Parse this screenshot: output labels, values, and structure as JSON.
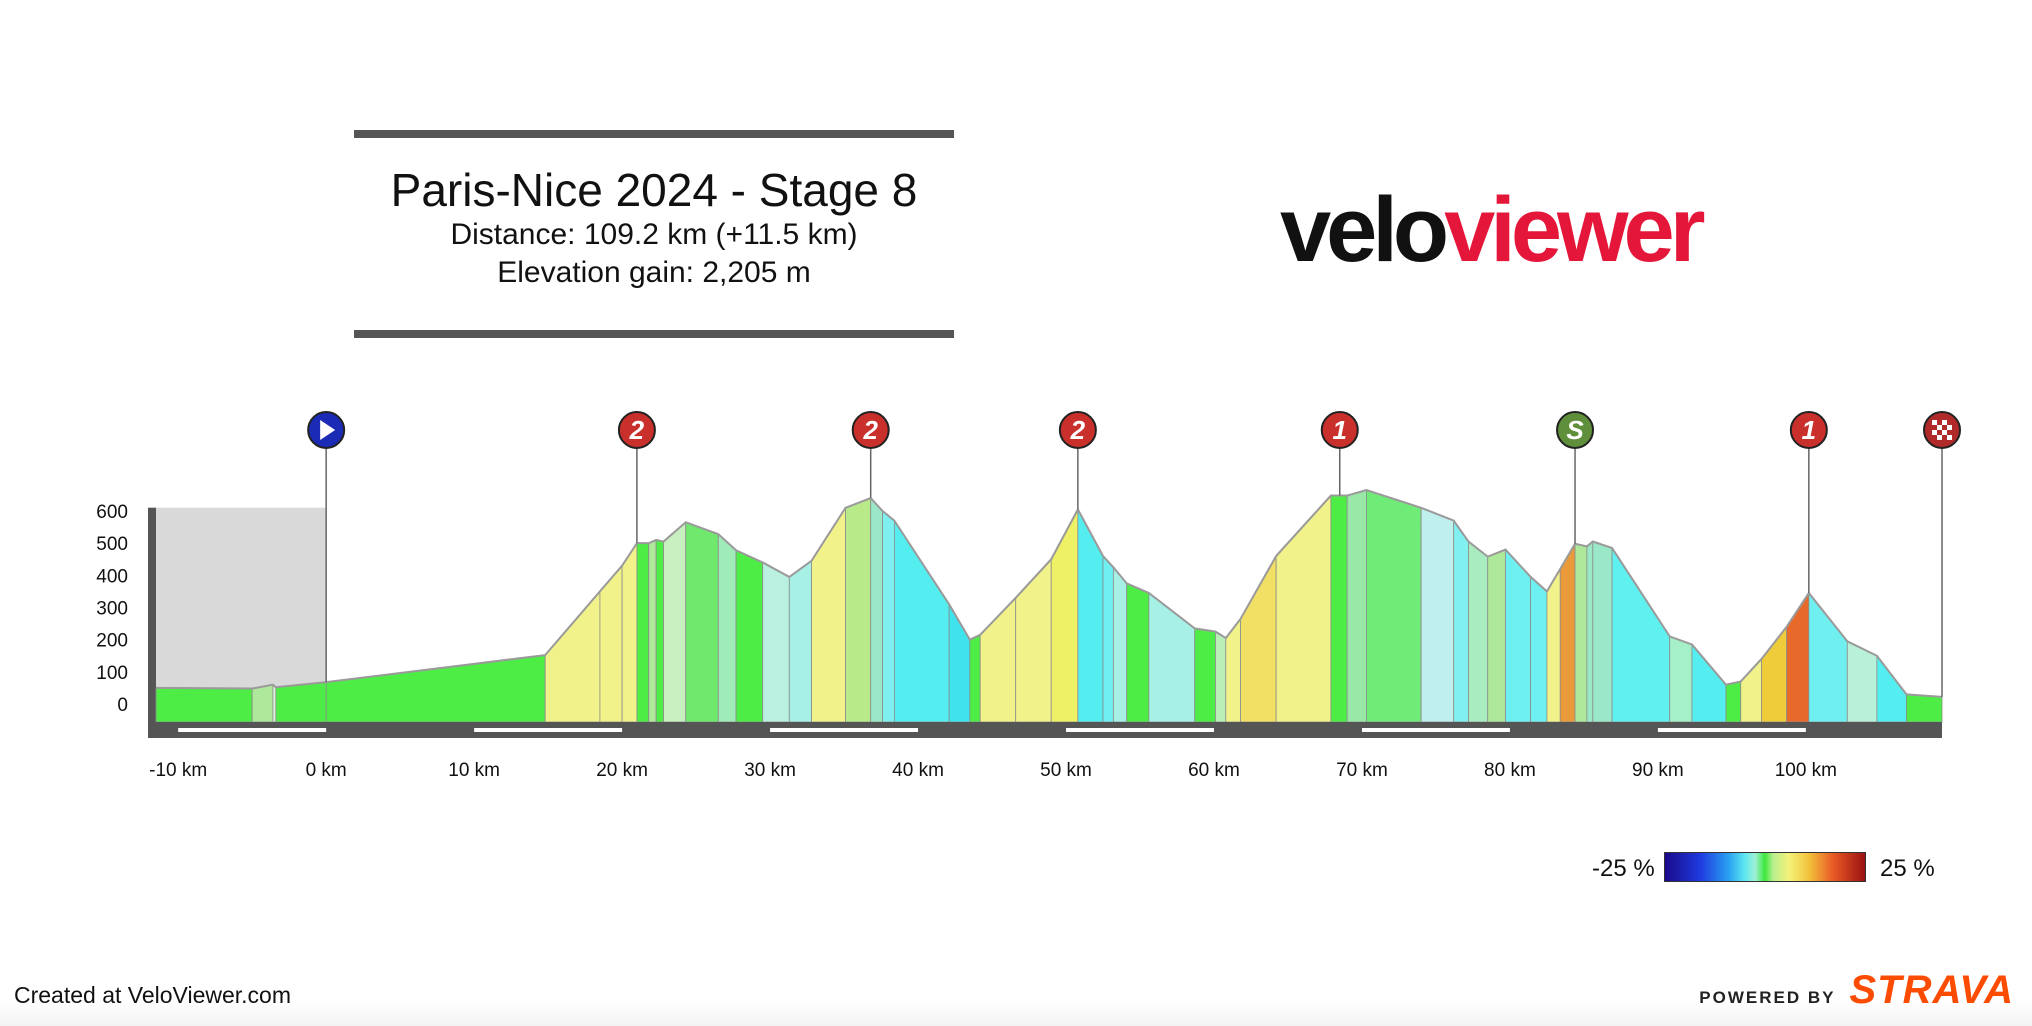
{
  "header": {
    "title": "Paris-Nice 2024 - Stage 8",
    "distance": "Distance: 109.2 km (+11.5 km)",
    "elevation_gain": "Elevation gain: 2,205 m"
  },
  "logo": {
    "part1": "velo",
    "part2": "viewer"
  },
  "footer": {
    "created": "Created at VeloViewer.com",
    "powered_by": "POWERED BY",
    "strava": "STRAVA"
  },
  "legend": {
    "min_label": "-25 %",
    "max_label": "25 %"
  },
  "colors": {
    "neutral_zone": "#d9d9d9",
    "base_bar": "#555555",
    "profile_line": "#9a9a9a",
    "cat2": "#c9302c",
    "cat1": "#c9302c",
    "sprint": "#5f8f3a",
    "start": "#1c2bb5"
  },
  "chart_data": {
    "type": "area",
    "title": "Paris-Nice 2024 - Stage 8",
    "xlabel": "",
    "ylabel": "",
    "xlim": [
      -11.5,
      109.2
    ],
    "ylim": [
      -50,
      660
    ],
    "x_ticks": [
      -10,
      0,
      10,
      20,
      30,
      40,
      50,
      60,
      70,
      80,
      90,
      100
    ],
    "x_tick_labels": [
      "-10 km",
      "0 km",
      "10 km",
      "20 km",
      "30 km",
      "40 km",
      "50 km",
      "60 km",
      "70 km",
      "80 km",
      "90 km",
      "100 km"
    ],
    "y_ticks": [
      0,
      100,
      200,
      300,
      400,
      500,
      600
    ],
    "y_tick_labels": [
      "0",
      "100",
      "200",
      "300",
      "400",
      "500",
      "600"
    ],
    "neutral_zone": [
      -11.5,
      0
    ],
    "gradient_scale": {
      "min": -25,
      "max": 25,
      "unit": "%"
    },
    "markers": [
      {
        "x": 0,
        "type": "start",
        "label": ""
      },
      {
        "x": 21,
        "type": "climb",
        "label": "2"
      },
      {
        "x": 36.8,
        "type": "climb",
        "label": "2"
      },
      {
        "x": 50.8,
        "type": "climb",
        "label": "2"
      },
      {
        "x": 68.5,
        "type": "climb",
        "label": "1"
      },
      {
        "x": 84.4,
        "type": "sprint",
        "label": "S"
      },
      {
        "x": 100.2,
        "type": "climb",
        "label": "1"
      },
      {
        "x": 109.2,
        "type": "finish",
        "label": ""
      }
    ],
    "profile": [
      {
        "x": -11.5,
        "y": 50,
        "color": "#4ded45"
      },
      {
        "x": -5,
        "y": 48,
        "color": "#aee89a"
      },
      {
        "x": -3.6,
        "y": 60,
        "color": "#d8f0d8"
      },
      {
        "x": -3.4,
        "y": 52,
        "color": "#4ded45"
      },
      {
        "x": 0,
        "y": 68,
        "color": "#4ded45"
      },
      {
        "x": 14.8,
        "y": 152,
        "color": "#f2f28a"
      },
      {
        "x": 18.5,
        "y": 350,
        "color": "#f2f28a"
      },
      {
        "x": 20,
        "y": 430,
        "color": "#f2f28a"
      },
      {
        "x": 21,
        "y": 500,
        "color": "#4ded45"
      },
      {
        "x": 21.8,
        "y": 500,
        "color": "#aee89a"
      },
      {
        "x": 22.3,
        "y": 510,
        "color": "#4ded45"
      },
      {
        "x": 22.8,
        "y": 505,
        "color": "#c8f0c0"
      },
      {
        "x": 24.3,
        "y": 565,
        "color": "#6fe86d"
      },
      {
        "x": 26.5,
        "y": 528,
        "color": "#9fecb8"
      },
      {
        "x": 27.7,
        "y": 478,
        "color": "#4ded45"
      },
      {
        "x": 29.5,
        "y": 440,
        "color": "#b9f0e0"
      },
      {
        "x": 31.3,
        "y": 395,
        "color": "#a6f0e6"
      },
      {
        "x": 32.8,
        "y": 445,
        "color": "#f2f28a"
      },
      {
        "x": 35.1,
        "y": 610,
        "color": "#b8ea8a"
      },
      {
        "x": 36.8,
        "y": 640,
        "color": "#9ae8c8"
      },
      {
        "x": 37.6,
        "y": 600,
        "color": "#7ef0f0"
      },
      {
        "x": 38.4,
        "y": 570,
        "color": "#55eef0"
      },
      {
        "x": 42.1,
        "y": 310,
        "color": "#3fe3ee"
      },
      {
        "x": 43.5,
        "y": 200,
        "color": "#4ded45"
      },
      {
        "x": 44.2,
        "y": 215,
        "color": "#f2f28a"
      },
      {
        "x": 46.6,
        "y": 330,
        "color": "#f2f28a"
      },
      {
        "x": 49,
        "y": 450,
        "color": "#eef065"
      },
      {
        "x": 50.8,
        "y": 605,
        "color": "#55eef0"
      },
      {
        "x": 52.5,
        "y": 460,
        "color": "#6feff0"
      },
      {
        "x": 53.2,
        "y": 425,
        "color": "#a6f0e6"
      },
      {
        "x": 54.1,
        "y": 375,
        "color": "#4ded45"
      },
      {
        "x": 55.6,
        "y": 345,
        "color": "#a6f0e6"
      },
      {
        "x": 58.7,
        "y": 235,
        "color": "#4ded45"
      },
      {
        "x": 60.1,
        "y": 225,
        "color": "#b8f0b8"
      },
      {
        "x": 60.8,
        "y": 205,
        "color": "#f2f28a"
      },
      {
        "x": 61.8,
        "y": 265,
        "color": "#f2e065"
      },
      {
        "x": 64.2,
        "y": 460,
        "color": "#f2f28a"
      },
      {
        "x": 67.9,
        "y": 648,
        "color": "#4ded45"
      },
      {
        "x": 69,
        "y": 648,
        "color": "#9ae8a8"
      },
      {
        "x": 70.3,
        "y": 665,
        "color": "#6feb78"
      },
      {
        "x": 74,
        "y": 610,
        "color": "#bff0ee"
      },
      {
        "x": 76.2,
        "y": 570,
        "color": "#80f0f0"
      },
      {
        "x": 77.2,
        "y": 505,
        "color": "#a8ecc0"
      },
      {
        "x": 78.5,
        "y": 458,
        "color": "#aee89a"
      },
      {
        "x": 79.7,
        "y": 480,
        "color": "#6ff0f0"
      },
      {
        "x": 81.4,
        "y": 395,
        "color": "#6ff0f0"
      },
      {
        "x": 82.5,
        "y": 350,
        "color": "#f2f28a"
      },
      {
        "x": 83.4,
        "y": 420,
        "color": "#ea9a3a"
      },
      {
        "x": 84.4,
        "y": 498,
        "color": "#aee89a"
      },
      {
        "x": 85.2,
        "y": 490,
        "color": "#9ae8c8"
      },
      {
        "x": 85.6,
        "y": 505,
        "color": "#9ae8c8"
      },
      {
        "x": 86.9,
        "y": 485,
        "color": "#5ff0f0"
      },
      {
        "x": 90.8,
        "y": 210,
        "color": "#a6f0c8"
      },
      {
        "x": 92.3,
        "y": 185,
        "color": "#55eef0"
      },
      {
        "x": 94.6,
        "y": 60,
        "color": "#4ded45"
      },
      {
        "x": 95.6,
        "y": 70,
        "color": "#f2f28a"
      },
      {
        "x": 97,
        "y": 140,
        "color": "#eecc3a"
      },
      {
        "x": 98.7,
        "y": 240,
        "color": "#e86a2a"
      },
      {
        "x": 100.2,
        "y": 345,
        "color": "#6feff0"
      },
      {
        "x": 102.8,
        "y": 195,
        "color": "#b8f0d8"
      },
      {
        "x": 104.8,
        "y": 150,
        "color": "#55eef0"
      },
      {
        "x": 106.8,
        "y": 30,
        "color": "#4ded45"
      },
      {
        "x": 109.2,
        "y": 22,
        "color": "#4ded45"
      }
    ]
  }
}
